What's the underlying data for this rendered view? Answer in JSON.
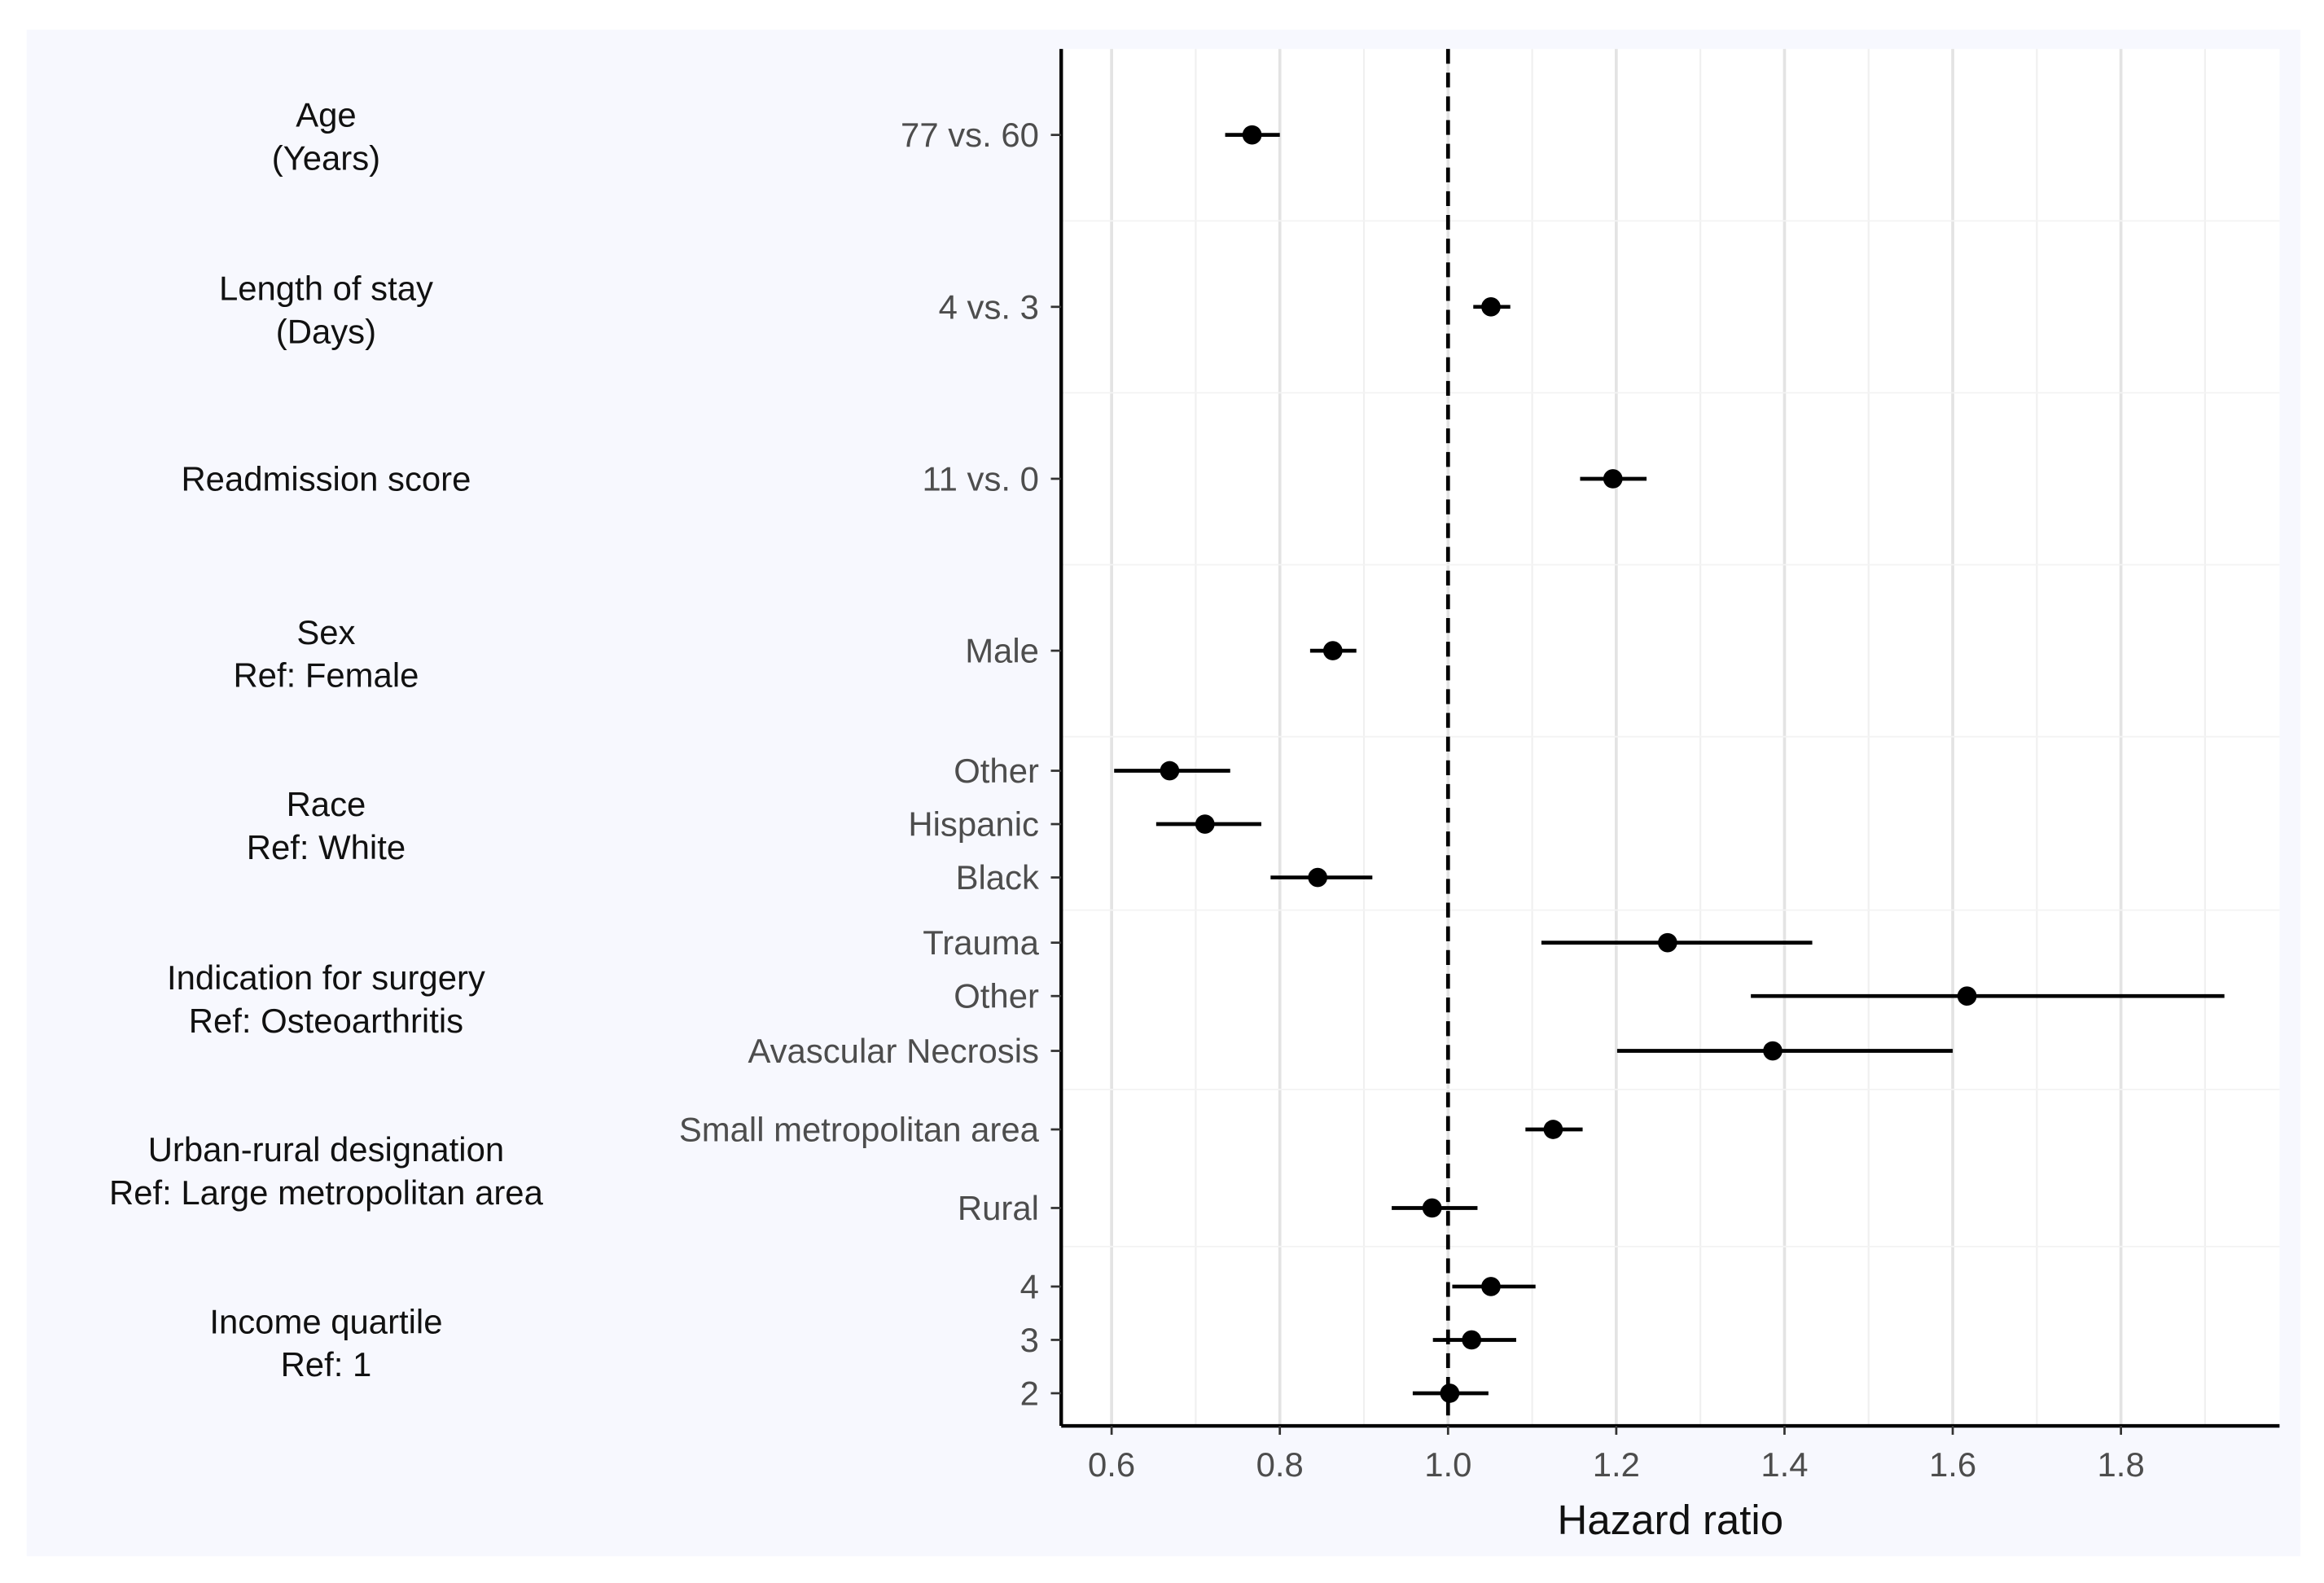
{
  "chart_data": {
    "type": "forest",
    "xlabel": "Hazard ratio",
    "xlim": [
      0.54,
      1.98
    ],
    "xticks": [
      0.6,
      0.8,
      1.0,
      1.2,
      1.4,
      1.6,
      1.8
    ],
    "xtick_labels": [
      "0.6",
      "0.8",
      "1.0",
      "1.2",
      "1.4",
      "1.6",
      "1.8"
    ],
    "reference_line": 1.0,
    "grid": true,
    "groups": [
      {
        "label": [
          "Age",
          "(Years)"
        ],
        "rows": [
          {
            "label": "77 vs. 60",
            "hr": 0.767,
            "lo": 0.735,
            "hi": 0.8
          }
        ]
      },
      {
        "label": [
          "Length of stay",
          "(Days)"
        ],
        "rows": [
          {
            "label": "4 vs. 3",
            "hr": 1.051,
            "lo": 1.03,
            "hi": 1.074
          }
        ]
      },
      {
        "label": [
          "Readmission score"
        ],
        "rows": [
          {
            "label": "11 vs. 0",
            "hr": 1.196,
            "lo": 1.157,
            "hi": 1.236
          }
        ]
      },
      {
        "label": [
          "Sex",
          "Ref: Female"
        ],
        "rows": [
          {
            "label": "Male",
            "hr": 0.863,
            "lo": 0.836,
            "hi": 0.891
          }
        ]
      },
      {
        "label": [
          "Race",
          "Ref: White"
        ],
        "rows": [
          {
            "label": "Other",
            "hr": 0.669,
            "lo": 0.603,
            "hi": 0.741
          },
          {
            "label": "Hispanic",
            "hr": 0.711,
            "lo": 0.653,
            "hi": 0.778
          },
          {
            "label": "Black",
            "hr": 0.845,
            "lo": 0.789,
            "hi": 0.91
          }
        ]
      },
      {
        "label": [
          "Indication for surgery",
          "Ref: Osteoarthritis"
        ],
        "rows": [
          {
            "label": "Trauma",
            "hr": 1.261,
            "lo": 1.111,
            "hi": 1.433
          },
          {
            "label": "Other",
            "hr": 1.617,
            "lo": 1.36,
            "hi": 1.923
          },
          {
            "label": "Avascular Necrosis",
            "hr": 1.386,
            "lo": 1.201,
            "hi": 1.6
          }
        ]
      },
      {
        "label": [
          "Urban-rural designation",
          "Ref: Large metropolitan area"
        ],
        "rows": [
          {
            "label": "Small metropolitan area",
            "hr": 1.125,
            "lo": 1.092,
            "hi": 1.16
          },
          {
            "label": "Rural",
            "hr": 0.981,
            "lo": 0.933,
            "hi": 1.035
          }
        ]
      },
      {
        "label": [
          "Income quartile",
          "Ref: 1"
        ],
        "rows": [
          {
            "label": "4",
            "hr": 1.051,
            "lo": 1.005,
            "hi": 1.104
          },
          {
            "label": "3",
            "hr": 1.028,
            "lo": 0.982,
            "hi": 1.081
          },
          {
            "label": "2",
            "hr": 1.002,
            "lo": 0.958,
            "hi": 1.048
          }
        ]
      }
    ]
  },
  "colors": {
    "panel_bg": "#f7f8fe",
    "plot_bg": "#ffffff",
    "grid": "#e3e3e3",
    "ink": "#000000"
  }
}
